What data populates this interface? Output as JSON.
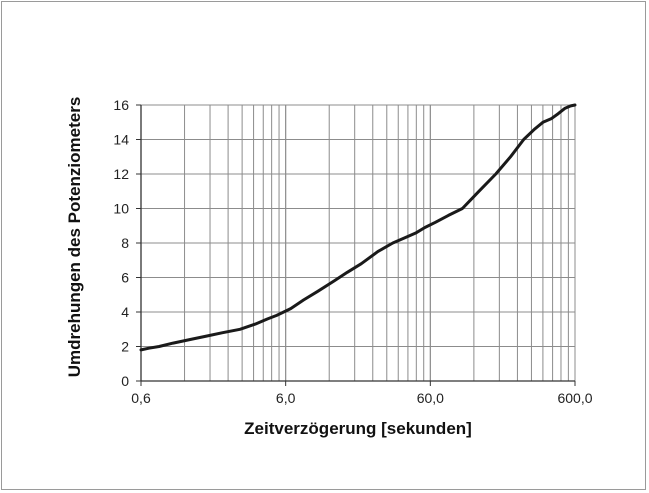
{
  "chart_data": {
    "type": "line",
    "title": "",
    "xlabel": "Zeitverzögerung [sekunden]",
    "ylabel": "Umdrehungen des Potenziometers",
    "x_scale": "log",
    "xlim": [
      0.6,
      600
    ],
    "ylim": [
      0,
      16
    ],
    "grid": true,
    "legend": "none",
    "x_ticks": [
      0.6,
      6,
      60,
      600
    ],
    "x_tick_labels": [
      "0,6",
      "6,0",
      "60,0",
      "600,0"
    ],
    "y_ticks": [
      0,
      2,
      4,
      6,
      8,
      10,
      12,
      14,
      16
    ],
    "y_tick_labels": [
      "0",
      "2",
      "4",
      "6",
      "8",
      "10",
      "12",
      "14",
      "16"
    ],
    "series": [
      {
        "color": "#1a1a1a",
        "x": [
          0.6,
          0.68,
          0.8,
          1.0,
          1.3,
          1.7,
          2.2,
          2.9,
          3.7,
          4.5,
          5.2,
          6.5,
          8.0,
          10.0,
          13.0,
          16.0,
          20.0,
          26.0,
          33.0,
          40.0,
          48.0,
          55.0,
          65.0,
          80.0,
          100.0,
          130.0,
          170.0,
          215.0,
          265.0,
          315.0,
          360.0,
          410.0,
          460.0,
          510.0,
          560.0,
          600.0
        ],
        "y": [
          1.8,
          1.9,
          2.0,
          2.2,
          2.4,
          2.6,
          2.8,
          3.0,
          3.3,
          3.6,
          3.8,
          4.2,
          4.7,
          5.2,
          5.8,
          6.3,
          6.8,
          7.5,
          8.0,
          8.3,
          8.6,
          8.9,
          9.2,
          9.6,
          10.0,
          11.0,
          12.0,
          13.0,
          14.0,
          14.6,
          15.0,
          15.2,
          15.5,
          15.8,
          15.95,
          16.0
        ]
      }
    ]
  },
  "colors": {
    "grid": "#8c8c8c",
    "axis": "#333333",
    "line": "#1a1a1a"
  }
}
